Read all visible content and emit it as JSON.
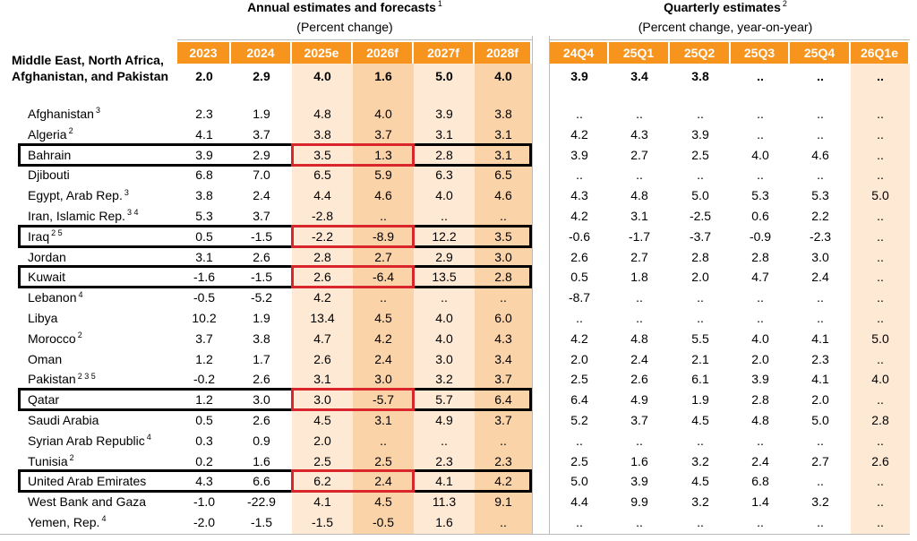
{
  "header": {
    "annual_title": "Annual estimates and forecasts",
    "annual_title_note": "1",
    "annual_subtitle": "(Percent change)",
    "quarterly_title": "Quarterly estimates",
    "quarterly_title_note": "2",
    "quarterly_subtitle": "(Percent change, year-on-year)"
  },
  "annual_columns": [
    "2023",
    "2024",
    "2025e",
    "2026f",
    "2027f",
    "2028f"
  ],
  "quarterly_columns": [
    "24Q4",
    "25Q1",
    "25Q2",
    "25Q3",
    "25Q4",
    "26Q1e"
  ],
  "region": {
    "label": "Middle East, North Africa, Afghanistan, and Pakistan",
    "annual": [
      "2.0",
      "2.9",
      "4.0",
      "1.6",
      "5.0",
      "4.0"
    ],
    "quarterly": [
      "3.9",
      "3.4",
      "3.8",
      "..",
      "..",
      ".."
    ]
  },
  "rows": [
    {
      "name": "Afghanistan",
      "note": "3",
      "annual": [
        "2.3",
        "1.9",
        "4.8",
        "4.0",
        "3.9",
        "3.8"
      ],
      "quarterly": [
        "..",
        "..",
        "..",
        "..",
        "..",
        ".."
      ]
    },
    {
      "name": "Algeria",
      "note": "2",
      "annual": [
        "4.1",
        "3.7",
        "3.8",
        "3.7",
        "3.1",
        "3.1"
      ],
      "quarterly": [
        "4.2",
        "4.3",
        "3.9",
        "..",
        "..",
        ".."
      ]
    },
    {
      "name": "Bahrain",
      "note": "",
      "annual": [
        "3.9",
        "2.9",
        "3.5",
        "1.3",
        "2.8",
        "3.1"
      ],
      "quarterly": [
        "3.9",
        "2.7",
        "2.5",
        "4.0",
        "4.6",
        ".."
      ]
    },
    {
      "name": "Djibouti",
      "note": "",
      "annual": [
        "6.8",
        "7.0",
        "6.5",
        "5.9",
        "6.3",
        "6.5"
      ],
      "quarterly": [
        "..",
        "..",
        "..",
        "..",
        "..",
        ".."
      ]
    },
    {
      "name": "Egypt, Arab Rep.",
      "note": "3",
      "annual": [
        "3.8",
        "2.4",
        "4.4",
        "4.6",
        "4.0",
        "4.6"
      ],
      "quarterly": [
        "4.3",
        "4.8",
        "5.0",
        "5.3",
        "5.3",
        "5.0"
      ]
    },
    {
      "name": "Iran, Islamic Rep.",
      "note": "3 4",
      "annual": [
        "5.3",
        "3.7",
        "-2.8",
        "..",
        "..",
        ".."
      ],
      "quarterly": [
        "4.2",
        "3.1",
        "-2.5",
        "0.6",
        "2.2",
        ".."
      ]
    },
    {
      "name": "Iraq",
      "note": "2 5",
      "annual": [
        "0.5",
        "-1.5",
        "-2.2",
        "-8.9",
        "12.2",
        "3.5"
      ],
      "quarterly": [
        "-0.6",
        "-1.7",
        "-3.7",
        "-0.9",
        "-2.3",
        ".."
      ]
    },
    {
      "name": "Jordan",
      "note": "",
      "annual": [
        "3.1",
        "2.6",
        "2.8",
        "2.7",
        "2.9",
        "3.0"
      ],
      "quarterly": [
        "2.6",
        "2.7",
        "2.8",
        "2.8",
        "3.0",
        ".."
      ]
    },
    {
      "name": "Kuwait",
      "note": "",
      "annual": [
        "-1.6",
        "-1.5",
        "2.6",
        "-6.4",
        "13.5",
        "2.8"
      ],
      "quarterly": [
        "0.5",
        "1.8",
        "2.0",
        "4.7",
        "2.4",
        ".."
      ]
    },
    {
      "name": "Lebanon",
      "note": "4",
      "annual": [
        "-0.5",
        "-5.2",
        "4.2",
        "..",
        "..",
        ".."
      ],
      "quarterly": [
        "-8.7",
        "..",
        "..",
        "..",
        "..",
        ".."
      ]
    },
    {
      "name": "Libya",
      "note": "",
      "annual": [
        "10.2",
        "1.9",
        "13.4",
        "4.5",
        "4.0",
        "6.0"
      ],
      "quarterly": [
        "..",
        "..",
        "..",
        "..",
        "..",
        ".."
      ]
    },
    {
      "name": "Morocco",
      "note": "2",
      "annual": [
        "3.7",
        "3.8",
        "4.7",
        "4.2",
        "4.0",
        "4.3"
      ],
      "quarterly": [
        "4.2",
        "4.8",
        "5.5",
        "4.0",
        "4.1",
        "5.0"
      ]
    },
    {
      "name": "Oman",
      "note": "",
      "annual": [
        "1.2",
        "1.7",
        "2.6",
        "2.4",
        "3.0",
        "3.4"
      ],
      "quarterly": [
        "2.0",
        "2.4",
        "2.1",
        "2.0",
        "2.3",
        ".."
      ]
    },
    {
      "name": "Pakistan",
      "note": "2 3 5",
      "annual": [
        "-0.2",
        "2.6",
        "3.1",
        "3.0",
        "3.2",
        "3.7"
      ],
      "quarterly": [
        "2.5",
        "2.6",
        "6.1",
        "3.9",
        "4.1",
        "4.0"
      ]
    },
    {
      "name": "Qatar",
      "note": "",
      "annual": [
        "1.2",
        "3.0",
        "3.0",
        "-5.7",
        "5.7",
        "6.4"
      ],
      "quarterly": [
        "6.4",
        "4.9",
        "1.9",
        "2.8",
        "2.0",
        ".."
      ]
    },
    {
      "name": "Saudi Arabia",
      "note": "",
      "annual": [
        "0.5",
        "2.6",
        "4.5",
        "3.1",
        "4.9",
        "3.7"
      ],
      "quarterly": [
        "5.2",
        "3.7",
        "4.5",
        "4.8",
        "5.0",
        "2.8"
      ]
    },
    {
      "name": "Syrian Arab Republic",
      "note": "4",
      "annual": [
        "0.3",
        "0.9",
        "2.0",
        "..",
        "..",
        ".."
      ],
      "quarterly": [
        "..",
        "..",
        "..",
        "..",
        "..",
        ".."
      ]
    },
    {
      "name": "Tunisia",
      "note": "2",
      "annual": [
        "0.2",
        "1.6",
        "2.5",
        "2.5",
        "2.3",
        "2.3"
      ],
      "quarterly": [
        "2.5",
        "1.6",
        "3.2",
        "2.4",
        "2.7",
        "2.6"
      ]
    },
    {
      "name": "United Arab Emirates",
      "note": "",
      "annual": [
        "4.3",
        "6.6",
        "6.2",
        "2.4",
        "4.1",
        "4.2"
      ],
      "quarterly": [
        "5.0",
        "3.9",
        "4.5",
        "6.8",
        "..",
        ".."
      ]
    },
    {
      "name": "West Bank and Gaza",
      "note": "",
      "annual": [
        "-1.0",
        "-22.9",
        "4.1",
        "4.5",
        "11.3",
        "9.1"
      ],
      "quarterly": [
        "4.4",
        "9.9",
        "3.2",
        "1.4",
        "3.2",
        ".."
      ]
    },
    {
      "name": "Yemen, Rep.",
      "note": "4",
      "annual": [
        "-2.0",
        "-1.5",
        "-1.5",
        "-0.5",
        "1.6",
        ".."
      ],
      "quarterly": [
        "..",
        "..",
        "..",
        "..",
        "..",
        ".."
      ]
    }
  ],
  "highlighted_rows": [
    "Bahrain",
    "Iraq",
    "Kuwait",
    "Qatar",
    "United Arab Emirates"
  ],
  "colors": {
    "header_orange": "#f7941d",
    "shade_light": "#fde9d4",
    "shade_dark": "#fbd3a9",
    "highlight_black": "#000000",
    "highlight_red": "#d9262c"
  }
}
